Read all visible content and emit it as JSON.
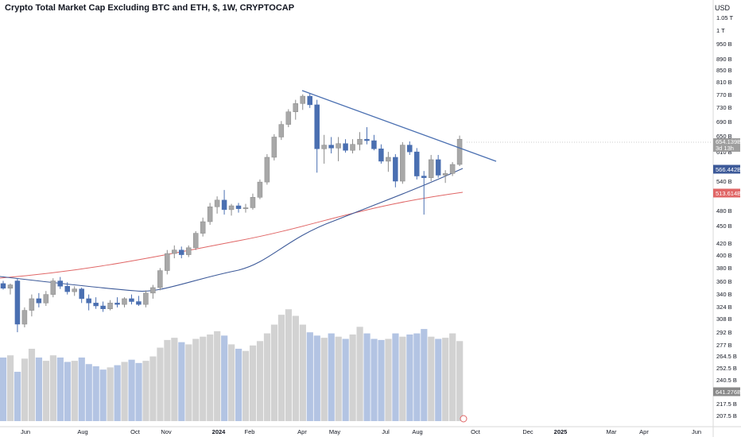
{
  "header": {
    "title": "Crypto Total Market Cap Excluding BTC and ETH, $, 1W, CRYPTOCAP",
    "currency": "USD"
  },
  "colors": {
    "up": "#a8a8a8",
    "down": "#4a6fb1",
    "vol_up": "#d2d2d2",
    "vol_down": "#b3c4e3",
    "trendline": "#4a6fb1",
    "ma_blue": "#3d5a99",
    "ma_red": "#e06666",
    "current_tag": "#9e9e9e",
    "ma_blue_tag": "#3d5a99",
    "ma_red_tag": "#e06666",
    "vol_tag": "#8a8a8a"
  },
  "chart_data": {
    "type": "candlestick",
    "interval": "1W",
    "y_axis_ticks": [
      "1.05 T",
      "1 T",
      "950 B",
      "890 B",
      "850 B",
      "810 B",
      "770 B",
      "730 B",
      "690 B",
      "650 B",
      "610 B",
      "540 B",
      "480 B",
      "450 B",
      "420 B",
      "400 B",
      "380 B",
      "360 B",
      "340 B",
      "324 B",
      "308 B",
      "292 B",
      "277 B",
      "264.5 B",
      "252.5 B",
      "240.5 B",
      "217.5 B",
      "207.5 B"
    ],
    "x_axis_ticks": [
      {
        "label": "Jun",
        "bold": false
      },
      {
        "label": "Aug",
        "bold": false
      },
      {
        "label": "Oct",
        "bold": false
      },
      {
        "label": "Nov",
        "bold": false
      },
      {
        "label": "2024",
        "bold": true
      },
      {
        "label": "Feb",
        "bold": false
      },
      {
        "label": "Apr",
        "bold": false
      },
      {
        "label": "May",
        "bold": false
      },
      {
        "label": "Jul",
        "bold": false
      },
      {
        "label": "Aug",
        "bold": false
      },
      {
        "label": "Oct",
        "bold": false
      },
      {
        "label": "Dec",
        "bold": false
      },
      {
        "label": "2025",
        "bold": true
      },
      {
        "label": "Mar",
        "bold": false
      },
      {
        "label": "Apr",
        "bold": false
      },
      {
        "label": "Jun",
        "bold": false
      }
    ],
    "price_tags": {
      "current": "654.139B",
      "countdown": "3d 13h",
      "ma_blue": "566.442B",
      "ma_red": "513.614B",
      "volume": "641.276B"
    },
    "candles": [
      {
        "o": 356,
        "h": 360,
        "l": 347,
        "c": 349
      },
      {
        "o": 349,
        "h": 356,
        "l": 340,
        "c": 354
      },
      {
        "o": 360,
        "h": 364,
        "l": 290,
        "c": 300
      },
      {
        "o": 300,
        "h": 322,
        "l": 296,
        "c": 318
      },
      {
        "o": 318,
        "h": 340,
        "l": 310,
        "c": 334
      },
      {
        "o": 334,
        "h": 342,
        "l": 322,
        "c": 328
      },
      {
        "o": 328,
        "h": 345,
        "l": 324,
        "c": 340
      },
      {
        "o": 340,
        "h": 364,
        "l": 336,
        "c": 360
      },
      {
        "o": 360,
        "h": 366,
        "l": 348,
        "c": 352
      },
      {
        "o": 352,
        "h": 358,
        "l": 340,
        "c": 344
      },
      {
        "o": 344,
        "h": 352,
        "l": 338,
        "c": 348
      },
      {
        "o": 348,
        "h": 350,
        "l": 328,
        "c": 334
      },
      {
        "o": 334,
        "h": 340,
        "l": 318,
        "c": 328
      },
      {
        "o": 328,
        "h": 336,
        "l": 320,
        "c": 324
      },
      {
        "o": 324,
        "h": 330,
        "l": 316,
        "c": 320
      },
      {
        "o": 320,
        "h": 332,
        "l": 318,
        "c": 328
      },
      {
        "o": 328,
        "h": 336,
        "l": 322,
        "c": 326
      },
      {
        "o": 326,
        "h": 336,
        "l": 322,
        "c": 334
      },
      {
        "o": 334,
        "h": 340,
        "l": 326,
        "c": 330
      },
      {
        "o": 330,
        "h": 338,
        "l": 324,
        "c": 326
      },
      {
        "o": 326,
        "h": 346,
        "l": 322,
        "c": 342
      },
      {
        "o": 342,
        "h": 354,
        "l": 334,
        "c": 350
      },
      {
        "o": 350,
        "h": 380,
        "l": 346,
        "c": 376
      },
      {
        "o": 376,
        "h": 410,
        "l": 370,
        "c": 404
      },
      {
        "o": 404,
        "h": 418,
        "l": 396,
        "c": 410
      },
      {
        "o": 410,
        "h": 416,
        "l": 396,
        "c": 402
      },
      {
        "o": 402,
        "h": 418,
        "l": 398,
        "c": 414
      },
      {
        "o": 414,
        "h": 444,
        "l": 410,
        "c": 440
      },
      {
        "o": 440,
        "h": 470,
        "l": 434,
        "c": 462
      },
      {
        "o": 462,
        "h": 500,
        "l": 456,
        "c": 492
      },
      {
        "o": 492,
        "h": 514,
        "l": 478,
        "c": 506
      },
      {
        "o": 506,
        "h": 528,
        "l": 476,
        "c": 486
      },
      {
        "o": 486,
        "h": 498,
        "l": 474,
        "c": 494
      },
      {
        "o": 494,
        "h": 500,
        "l": 480,
        "c": 488
      },
      {
        "o": 488,
        "h": 498,
        "l": 480,
        "c": 490
      },
      {
        "o": 490,
        "h": 520,
        "l": 486,
        "c": 512
      },
      {
        "o": 512,
        "h": 552,
        "l": 508,
        "c": 546
      },
      {
        "o": 546,
        "h": 614,
        "l": 540,
        "c": 606
      },
      {
        "o": 606,
        "h": 668,
        "l": 598,
        "c": 660
      },
      {
        "o": 660,
        "h": 706,
        "l": 652,
        "c": 696
      },
      {
        "o": 696,
        "h": 742,
        "l": 688,
        "c": 734
      },
      {
        "o": 734,
        "h": 772,
        "l": 710,
        "c": 760
      },
      {
        "o": 760,
        "h": 790,
        "l": 740,
        "c": 784
      },
      {
        "o": 784,
        "h": 792,
        "l": 746,
        "c": 756
      },
      {
        "o": 756,
        "h": 772,
        "l": 568,
        "c": 628
      },
      {
        "o": 628,
        "h": 666,
        "l": 590,
        "c": 638
      },
      {
        "o": 638,
        "h": 660,
        "l": 616,
        "c": 630
      },
      {
        "o": 630,
        "h": 660,
        "l": 596,
        "c": 642
      },
      {
        "o": 642,
        "h": 654,
        "l": 618,
        "c": 624
      },
      {
        "o": 624,
        "h": 654,
        "l": 616,
        "c": 640
      },
      {
        "o": 640,
        "h": 674,
        "l": 624,
        "c": 654
      },
      {
        "o": 654,
        "h": 688,
        "l": 640,
        "c": 650
      },
      {
        "o": 650,
        "h": 666,
        "l": 624,
        "c": 628
      },
      {
        "o": 628,
        "h": 640,
        "l": 590,
        "c": 596
      },
      {
        "o": 596,
        "h": 620,
        "l": 570,
        "c": 606
      },
      {
        "o": 606,
        "h": 614,
        "l": 534,
        "c": 548
      },
      {
        "o": 548,
        "h": 646,
        "l": 542,
        "c": 638
      },
      {
        "o": 638,
        "h": 648,
        "l": 612,
        "c": 620
      },
      {
        "o": 620,
        "h": 630,
        "l": 552,
        "c": 560
      },
      {
        "o": 560,
        "h": 572,
        "l": 476,
        "c": 556
      },
      {
        "o": 556,
        "h": 612,
        "l": 548,
        "c": 600
      },
      {
        "o": 600,
        "h": 612,
        "l": 556,
        "c": 562
      },
      {
        "o": 562,
        "h": 574,
        "l": 544,
        "c": 566
      },
      {
        "o": 566,
        "h": 594,
        "l": 560,
        "c": 588
      },
      {
        "o": 588,
        "h": 664,
        "l": 584,
        "c": 654
      }
    ],
    "volume": [
      58,
      60,
      45,
      57,
      66,
      58,
      55,
      60,
      58,
      54,
      55,
      58,
      52,
      50,
      47,
      49,
      51,
      54,
      56,
      53,
      55,
      59,
      67,
      74,
      76,
      72,
      70,
      75,
      77,
      79,
      82,
      78,
      70,
      66,
      64,
      69,
      73,
      80,
      88,
      97,
      102,
      96,
      88,
      81,
      78,
      76,
      80,
      77,
      75,
      79,
      86,
      80,
      75,
      74,
      75,
      80,
      77,
      79,
      80,
      84,
      77,
      75,
      76,
      80,
      73
    ]
  }
}
